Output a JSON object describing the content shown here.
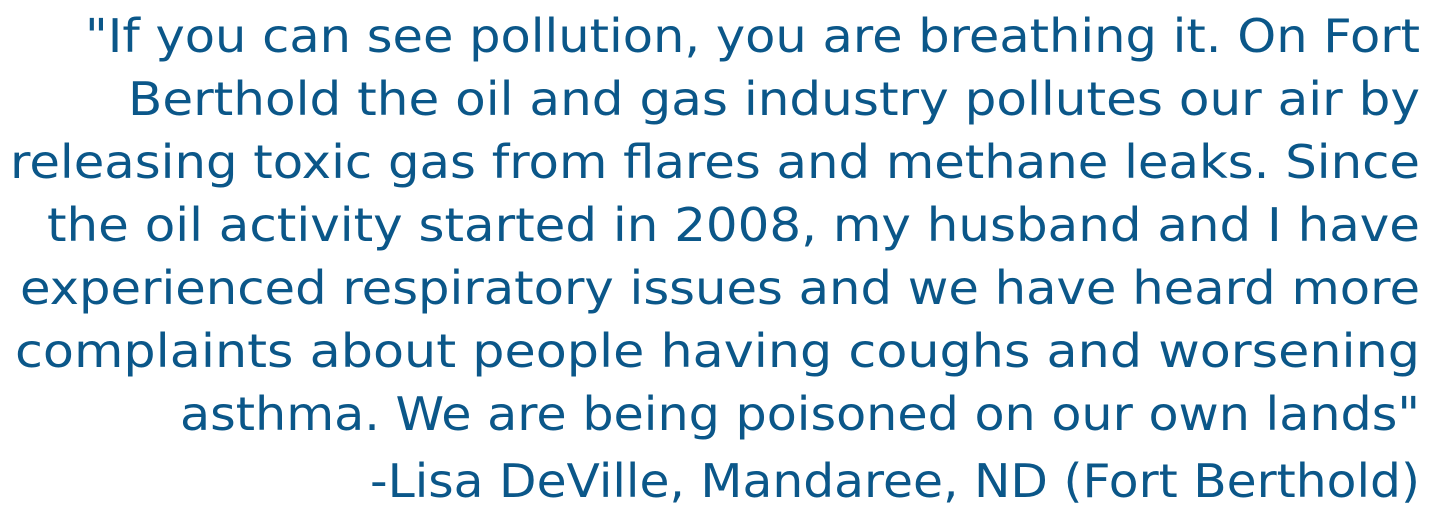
{
  "quote": {
    "lines": [
      "\"If you can see pollution, you are breathing it. On Fort",
      "Berthold the oil and gas industry pollutes our air by",
      "releasing toxic gas from flares and methane leaks. Since",
      "the oil activity started in 2008, my husband and I have",
      "experienced respiratory issues and we have heard more",
      "complaints about people having coughs and worsening",
      "asthma. We are being poisoned on our own lands\""
    ],
    "attribution": "-Lisa DeVille, Mandaree, ND (Fort Berthold)"
  }
}
